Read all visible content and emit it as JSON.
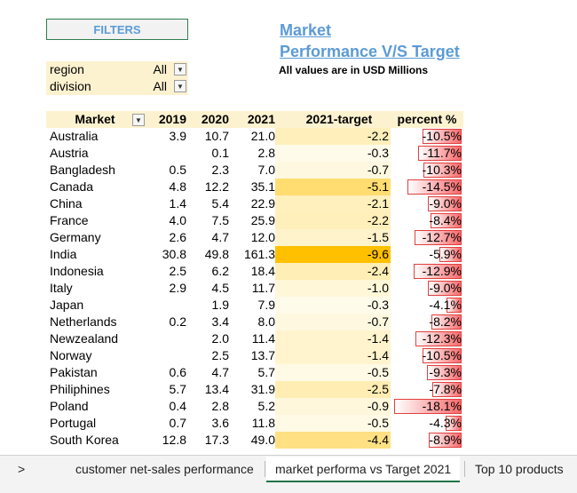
{
  "filters_label": "FILTERS",
  "title_line1": "Market",
  "title_line2": "Performance V/S Target",
  "subtitle": "All values are in USD Millions",
  "slicers": [
    {
      "label": "region",
      "value": "All"
    },
    {
      "label": "division",
      "value": "All"
    }
  ],
  "headers": {
    "market": "Market",
    "y2019": "2019",
    "y2020": "2020",
    "y2021": "2021",
    "target": "2021-target",
    "percent": "percent %"
  },
  "rows": [
    {
      "market": "Australia",
      "y2019": "3.9",
      "y2020": "10.7",
      "y2021": "21.0",
      "target": "-2.2",
      "percent": "-10.5%"
    },
    {
      "market": "Austria",
      "y2019": "",
      "y2020": "0.1",
      "y2021": "2.8",
      "target": "-0.3",
      "percent": "-11.7%"
    },
    {
      "market": "Bangladesh",
      "y2019": "0.5",
      "y2020": "2.3",
      "y2021": "7.0",
      "target": "-0.7",
      "percent": "-10.3%"
    },
    {
      "market": "Canada",
      "y2019": "4.8",
      "y2020": "12.2",
      "y2021": "35.1",
      "target": "-5.1",
      "percent": "-14.5%"
    },
    {
      "market": "China",
      "y2019": "1.4",
      "y2020": "5.4",
      "y2021": "22.9",
      "target": "-2.1",
      "percent": "-9.0%"
    },
    {
      "market": "France",
      "y2019": "4.0",
      "y2020": "7.5",
      "y2021": "25.9",
      "target": "-2.2",
      "percent": "-8.4%"
    },
    {
      "market": "Germany",
      "y2019": "2.6",
      "y2020": "4.7",
      "y2021": "12.0",
      "target": "-1.5",
      "percent": "-12.7%"
    },
    {
      "market": "India",
      "y2019": "30.8",
      "y2020": "49.8",
      "y2021": "161.3",
      "target": "-9.6",
      "percent": "-5.9%"
    },
    {
      "market": "Indonesia",
      "y2019": "2.5",
      "y2020": "6.2",
      "y2021": "18.4",
      "target": "-2.4",
      "percent": "-12.9%"
    },
    {
      "market": "Italy",
      "y2019": "2.9",
      "y2020": "4.5",
      "y2021": "11.7",
      "target": "-1.0",
      "percent": "-9.0%"
    },
    {
      "market": "Japan",
      "y2019": "",
      "y2020": "1.9",
      "y2021": "7.9",
      "target": "-0.3",
      "percent": "-4.1%"
    },
    {
      "market": "Netherlands",
      "y2019": "0.2",
      "y2020": "3.4",
      "y2021": "8.0",
      "target": "-0.7",
      "percent": "-8.2%"
    },
    {
      "market": "Newzealand",
      "y2019": "",
      "y2020": "2.0",
      "y2021": "11.4",
      "target": "-1.4",
      "percent": "-12.3%"
    },
    {
      "market": "Norway",
      "y2019": "",
      "y2020": "2.5",
      "y2021": "13.7",
      "target": "-1.4",
      "percent": "-10.5%"
    },
    {
      "market": "Pakistan",
      "y2019": "0.6",
      "y2020": "4.7",
      "y2021": "5.7",
      "target": "-0.5",
      "percent": "-9.3%"
    },
    {
      "market": "Philiphines",
      "y2019": "5.7",
      "y2020": "13.4",
      "y2021": "31.9",
      "target": "-2.5",
      "percent": "-7.8%"
    },
    {
      "market": "Poland",
      "y2019": "0.4",
      "y2020": "2.8",
      "y2021": "5.2",
      "target": "-0.9",
      "percent": "-18.1%"
    },
    {
      "market": "Portugal",
      "y2019": "0.7",
      "y2020": "3.6",
      "y2021": "11.8",
      "target": "-0.5",
      "percent": "-4.3%"
    },
    {
      "market": "South Korea",
      "y2019": "12.8",
      "y2020": "17.3",
      "y2021": "49.0",
      "target": "-4.4",
      "percent": "-8.9%"
    }
  ],
  "tabs": {
    "nav": ">",
    "tab1": "customer net-sales performance",
    "tab2": "market performa vs Target 2021",
    "tab3": "Top 10 products"
  },
  "colors": {
    "accent": "#5b9bd5",
    "header_bg": "#fdf2d0",
    "bar_red": "#f8696b",
    "scale_low": "#fffbea",
    "scale_high": "#ffc000",
    "tab_green": "#217346"
  }
}
